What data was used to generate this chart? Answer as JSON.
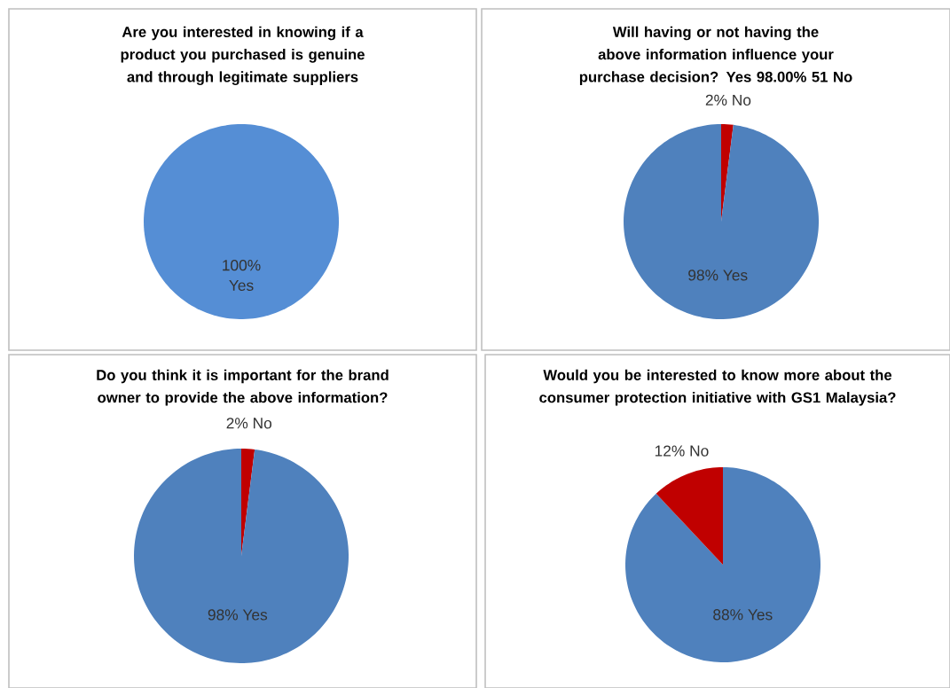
{
  "chart_data": [
    {
      "type": "pie",
      "title": "Are you interested in knowing if a product you purchased is genuine and through legitimate suppliers",
      "categories": [
        "Yes"
      ],
      "values": [
        100
      ],
      "colors": [
        "#558ed5"
      ],
      "value_labels": [
        "100%"
      ]
    },
    {
      "type": "pie",
      "title": "Will having or not having the above information influence your purchase decision?  Yes 98.00% 51 No",
      "categories": [
        "No",
        "Yes"
      ],
      "values": [
        2,
        98
      ],
      "colors": [
        "#c00000",
        "#4f81bd"
      ],
      "value_labels": [
        "2%",
        "98%"
      ]
    },
    {
      "type": "pie",
      "title": "Do you think it is important for the brand owner to provide the above information?",
      "categories": [
        "No",
        "Yes"
      ],
      "values": [
        2,
        98
      ],
      "colors": [
        "#c00000",
        "#4f81bd"
      ],
      "value_labels": [
        "2%",
        "98%"
      ]
    },
    {
      "type": "pie",
      "title": "Would you be interested to know more about the consumer protection initiative with GS1 Malaysia?",
      "categories": [
        "Yes",
        "No"
      ],
      "values": [
        88,
        12
      ],
      "colors": [
        "#4f81bd",
        "#c00000"
      ],
      "value_labels": [
        "88%",
        "12%"
      ]
    }
  ]
}
